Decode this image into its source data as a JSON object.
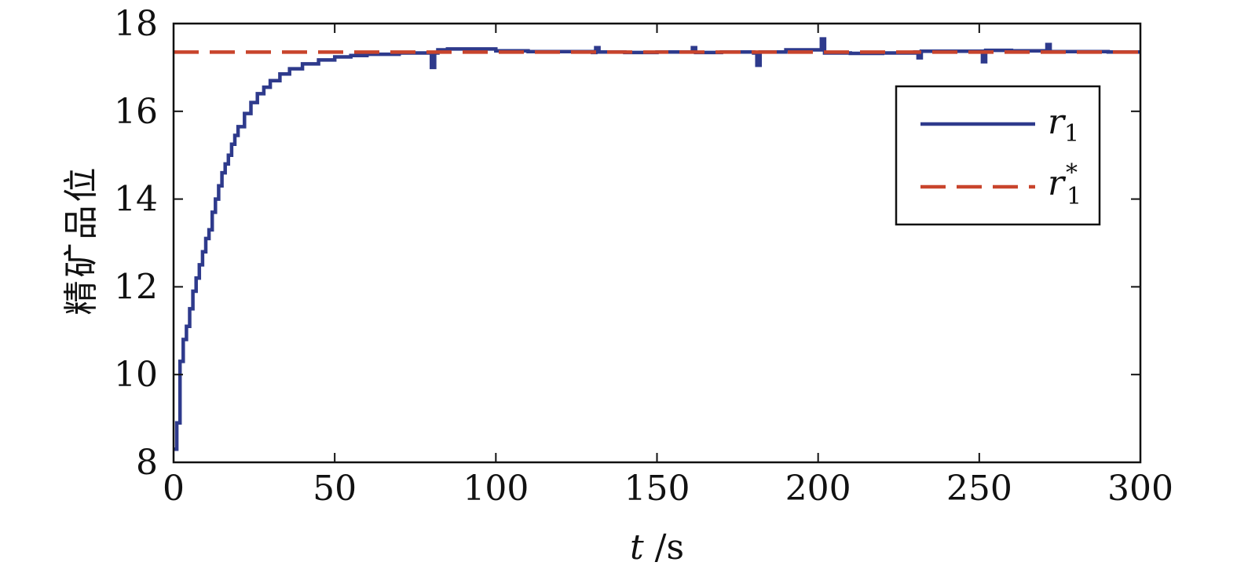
{
  "chart_data": {
    "type": "line",
    "xlabel_var": "t",
    "xlabel_unit": "/s",
    "ylabel": "精矿品位",
    "xlim": [
      0,
      300
    ],
    "ylim": [
      8,
      18
    ],
    "xticks": [
      "0",
      "50",
      "100",
      "150",
      "200",
      "250",
      "300"
    ],
    "yticks": [
      "8",
      "10",
      "12",
      "14",
      "16",
      "18"
    ],
    "grid": false,
    "legend_position": "top-right",
    "series": [
      {
        "name": "r1",
        "legend_main": "r",
        "legend_sub": "1",
        "legend_sup": "",
        "style": "solid-staircase",
        "color": "#2e3a8c",
        "x": [
          0,
          1,
          2,
          3,
          4,
          5,
          6,
          7,
          8,
          9,
          10,
          11,
          12,
          13,
          14,
          15,
          16,
          17,
          18,
          19,
          20,
          22,
          24,
          26,
          28,
          30,
          33,
          36,
          40,
          45,
          50,
          55,
          60,
          70,
          78,
          80,
          81,
          82,
          85,
          90,
          100,
          110,
          120,
          130,
          131,
          132,
          140,
          150,
          160,
          161,
          162,
          170,
          180,
          181,
          182,
          190,
          200,
          201,
          202,
          210,
          220,
          230,
          231,
          232,
          240,
          250,
          251,
          252,
          260,
          270,
          271,
          272,
          280,
          290,
          300
        ],
        "y": [
          8.3,
          8.9,
          10.3,
          10.8,
          11.1,
          11.5,
          11.9,
          12.2,
          12.5,
          12.8,
          13.1,
          13.3,
          13.7,
          14.0,
          14.3,
          14.6,
          14.8,
          15.0,
          15.25,
          15.45,
          15.65,
          15.95,
          16.2,
          16.4,
          16.55,
          16.7,
          16.85,
          16.97,
          17.08,
          17.17,
          17.24,
          17.27,
          17.3,
          17.33,
          17.33,
          17.0,
          17.33,
          17.4,
          17.42,
          17.42,
          17.38,
          17.36,
          17.36,
          17.34,
          17.45,
          17.35,
          17.34,
          17.35,
          17.35,
          17.45,
          17.34,
          17.35,
          17.33,
          17.05,
          17.35,
          17.4,
          17.4,
          17.65,
          17.33,
          17.32,
          17.33,
          17.35,
          17.22,
          17.37,
          17.37,
          17.37,
          17.13,
          17.39,
          17.38,
          17.38,
          17.52,
          17.36,
          17.36,
          17.35,
          17.35
        ]
      },
      {
        "name": "r1*",
        "legend_main": "r",
        "legend_sub": "1",
        "legend_sup": "*",
        "style": "dashed",
        "color": "#c8442c",
        "x": [
          0,
          300
        ],
        "y": [
          17.35,
          17.35
        ]
      }
    ]
  }
}
